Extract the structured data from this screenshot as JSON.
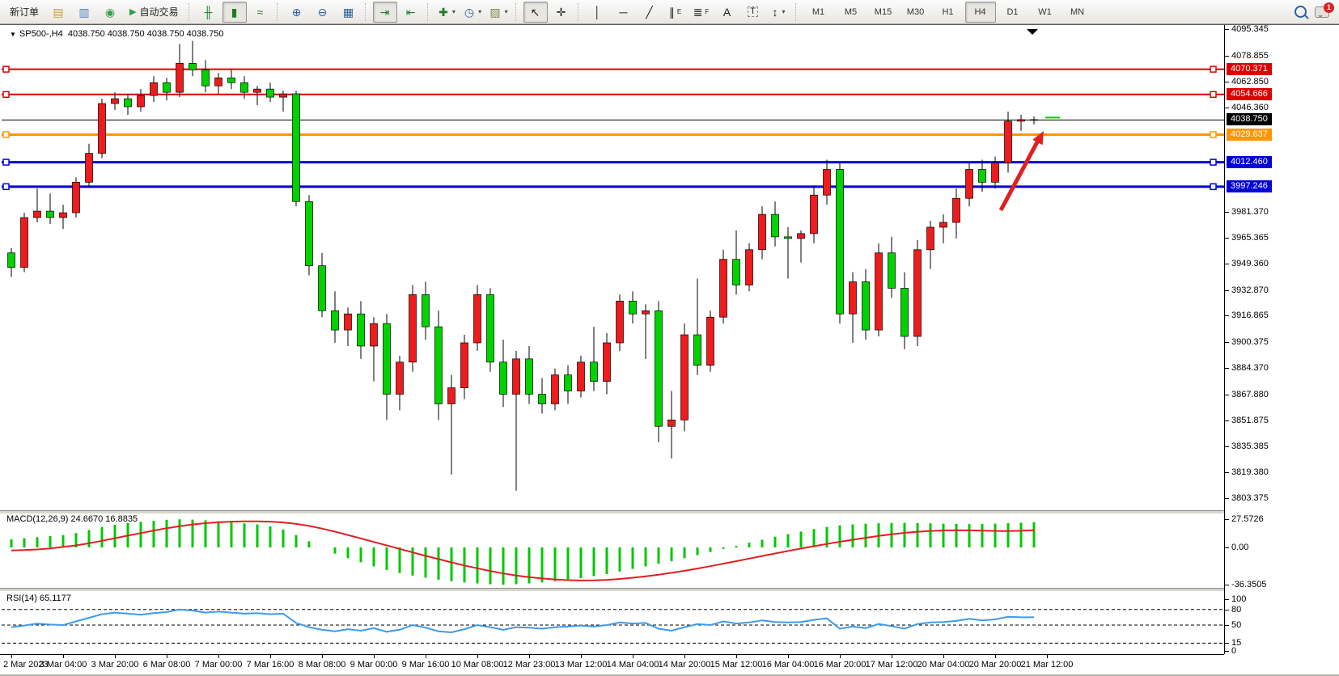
{
  "toolbar": {
    "new_order_label": "新订单",
    "auto_trading_label": "自动交易",
    "items": [
      {
        "t": "icon",
        "name": "history-center-icon",
        "glyph": "▤",
        "color": "#c9a227"
      },
      {
        "t": "icon",
        "name": "community-icon",
        "glyph": "▥",
        "color": "#4a7fc1"
      },
      {
        "t": "icon",
        "name": "signals-icon",
        "glyph": "◉",
        "color": "#35a04a"
      },
      {
        "t": "autotrade"
      },
      {
        "t": "sep"
      },
      {
        "t": "icon",
        "name": "bar-chart-icon",
        "glyph": "╫",
        "color": "#1e7d22"
      },
      {
        "t": "icon",
        "name": "candlestick-chart-icon",
        "glyph": "▮",
        "color": "#1e7d22",
        "pressed": true
      },
      {
        "t": "icon",
        "name": "line-chart-icon",
        "glyph": "≈",
        "color": "#1e7d22"
      },
      {
        "t": "sep"
      },
      {
        "t": "icon",
        "name": "zoom-in-icon",
        "glyph": "⊕",
        "color": "#2c5f9e"
      },
      {
        "t": "icon",
        "name": "zoom-out-icon",
        "glyph": "⊖",
        "color": "#2c5f9e"
      },
      {
        "t": "icon",
        "name": "tile-windows-icon",
        "glyph": "▦",
        "color": "#2c5f9e"
      },
      {
        "t": "sep"
      },
      {
        "t": "icon",
        "name": "auto-scroll-icon",
        "glyph": "⇥",
        "color": "#1e7d22",
        "pressed": true
      },
      {
        "t": "icon",
        "name": "chart-shift-icon",
        "glyph": "⇤",
        "color": "#1e7d22"
      },
      {
        "t": "sep"
      },
      {
        "t": "icon",
        "name": "indicators-icon",
        "glyph": "✚",
        "color": "#1e7d22",
        "caret": true
      },
      {
        "t": "icon",
        "name": "periods-icon",
        "glyph": "◷",
        "color": "#2c5f9e",
        "caret": true
      },
      {
        "t": "icon",
        "name": "templates-icon",
        "glyph": "▨",
        "color": "#7a8a4a",
        "caret": true
      },
      {
        "t": "sep"
      },
      {
        "t": "icon",
        "name": "cursor-icon",
        "glyph": "↖",
        "color": "#222",
        "pressed": true
      },
      {
        "t": "icon",
        "name": "crosshair-icon",
        "glyph": "✛",
        "color": "#222"
      },
      {
        "t": "sep"
      },
      {
        "t": "icon",
        "name": "vertical-line-icon",
        "glyph": "│",
        "color": "#222"
      },
      {
        "t": "icon",
        "name": "horizontal-line-icon",
        "glyph": "─",
        "color": "#222"
      },
      {
        "t": "icon",
        "name": "trendline-icon",
        "glyph": "╱",
        "color": "#222"
      },
      {
        "t": "icon",
        "name": "equidistant-channel-icon",
        "glyph": "∥",
        "sub": "E",
        "color": "#222"
      },
      {
        "t": "icon",
        "name": "fibonacci-icon",
        "glyph": "≣",
        "sub": "F",
        "color": "#222"
      },
      {
        "t": "icon",
        "name": "text-icon",
        "glyph": "A",
        "color": "#222"
      },
      {
        "t": "icon",
        "name": "text-label-icon",
        "glyph": "T",
        "color": "#222"
      },
      {
        "t": "icon",
        "name": "arrows-icon",
        "glyph": "↕",
        "color": "#222",
        "caret": true
      },
      {
        "t": "sep"
      }
    ],
    "timeframes": [
      "M1",
      "M5",
      "M15",
      "M30",
      "H1",
      "H4",
      "D1",
      "W1",
      "MN"
    ],
    "active_timeframe": "H4",
    "notification_badge": "1"
  },
  "chart": {
    "symbol_title": "SP500-,H4",
    "ohlc_line": "4038.750 4038.750 4038.750 4038.750"
  },
  "indicators": {
    "macd_label": "MACD(12,26,9) 24.6670 16.8835",
    "rsi_label": "RSI(14) 65.1177",
    "macd_ticks": [
      "27.5726",
      "0.00",
      "-36.3505"
    ],
    "macd_tick_values": [
      27.5726,
      0,
      -36.3505
    ],
    "rsi_ticks": [
      "100",
      "80",
      "50",
      "15",
      "0"
    ],
    "rsi_tick_values": [
      100,
      80,
      50,
      15,
      0
    ]
  },
  "price_axis": {
    "ticks": [
      "4095.345",
      "4078.855",
      "4062.850",
      "4046.360",
      "3981.370",
      "3965.365",
      "3949.360",
      "3932.870",
      "3916.865",
      "3900.375",
      "3884.370",
      "3867.880",
      "3851.875",
      "3835.385",
      "3819.380",
      "3803.375"
    ]
  },
  "time_axis": [
    "2 Mar 2023",
    "3 Mar 04:00",
    "3 Mar 20:00",
    "6 Mar 08:00",
    "7 Mar 00:00",
    "7 Mar 16:00",
    "8 Mar 08:00",
    "9 Mar 00:00",
    "9 Mar 16:00",
    "10 Mar 08:00",
    "12 Mar 23:00",
    "13 Mar 12:00",
    "14 Mar 04:00",
    "14 Mar 20:00",
    "15 Mar 12:00",
    "16 Mar 04:00",
    "16 Mar 20:00",
    "17 Mar 12:00",
    "20 Mar 04:00",
    "20 Mar 20:00",
    "21 Mar 12:00"
  ],
  "colors": {
    "bull": "#ee1c1c",
    "bear": "#00d200",
    "wick": "#000000",
    "level_red": "#dd0000",
    "level_orange": "#ff9500",
    "level_blue": "#0000d8",
    "price_line": "#000000",
    "macd_bar": "#00c800",
    "macd_signal": "#e02020",
    "rsi_line": "#3d9be9",
    "arrow": "#e02020",
    "badge_black": "#000000"
  },
  "chart_data": {
    "type": "candlestick",
    "symbol": "SP500-",
    "timeframe": "H4",
    "current_price": 4038.75,
    "ylim": [
      3803.375,
      4095.345
    ],
    "grid": false,
    "levels": [
      {
        "price": 4070.371,
        "label": "4070.371",
        "color": "#dd0000",
        "line_width": 2,
        "handles": true
      },
      {
        "price": 4054.666,
        "label": "4054.666",
        "color": "#dd0000",
        "line_width": 2,
        "handles": true
      },
      {
        "price": 4038.75,
        "label": "4038.750",
        "color": "#000000",
        "line_width": 1,
        "handles": false
      },
      {
        "price": 4029.637,
        "label": "4029.637",
        "color": "#ff9500",
        "line_width": 3,
        "handles": true
      },
      {
        "price": 4012.46,
        "label": "4012.460",
        "color": "#0000d8",
        "line_width": 3,
        "handles": true
      },
      {
        "price": 3997.246,
        "label": "3997.246",
        "color": "#0000d8",
        "line_width": 3,
        "handles": true
      }
    ],
    "candles": [
      [
        3956,
        3959,
        3941,
        3947
      ],
      [
        3947,
        3981,
        3944,
        3978
      ],
      [
        3978,
        3996,
        3975,
        3982
      ],
      [
        3982,
        3993,
        3974,
        3978
      ],
      [
        3978,
        3986,
        3971,
        3981
      ],
      [
        3981,
        4003,
        3978,
        4000
      ],
      [
        4000,
        4024,
        3997,
        4018
      ],
      [
        4018,
        4052,
        4015,
        4049
      ],
      [
        4049,
        4056,
        4045,
        4052
      ],
      [
        4052,
        4055,
        4042,
        4047
      ],
      [
        4047,
        4058,
        4044,
        4054
      ],
      [
        4054,
        4066,
        4050,
        4062
      ],
      [
        4062,
        4065,
        4051,
        4056
      ],
      [
        4056,
        4086,
        4053,
        4074
      ],
      [
        4074,
        4088,
        4066,
        4070
      ],
      [
        4070,
        4076,
        4056,
        4060
      ],
      [
        4060,
        4068,
        4055,
        4065
      ],
      [
        4065,
        4070,
        4058,
        4062
      ],
      [
        4062,
        4066,
        4052,
        4056
      ],
      [
        4056,
        4060,
        4048,
        4058
      ],
      [
        4058,
        4062,
        4050,
        4053
      ],
      [
        4053,
        4057,
        4044,
        4055
      ],
      [
        4055,
        4057,
        3985,
        3988
      ],
      [
        3988,
        3992,
        3942,
        3948
      ],
      [
        3948,
        3956,
        3916,
        3920
      ],
      [
        3920,
        3932,
        3900,
        3908
      ],
      [
        3908,
        3922,
        3898,
        3918
      ],
      [
        3918,
        3926,
        3890,
        3898
      ],
      [
        3898,
        3916,
        3876,
        3912
      ],
      [
        3912,
        3918,
        3852,
        3868
      ],
      [
        3868,
        3892,
        3858,
        3888
      ],
      [
        3888,
        3936,
        3882,
        3930
      ],
      [
        3930,
        3938,
        3902,
        3910
      ],
      [
        3910,
        3920,
        3852,
        3862
      ],
      [
        3862,
        3880,
        3818,
        3872
      ],
      [
        3872,
        3905,
        3865,
        3900
      ],
      [
        3900,
        3936,
        3895,
        3930
      ],
      [
        3930,
        3934,
        3882,
        3888
      ],
      [
        3888,
        3902,
        3860,
        3868
      ],
      [
        3868,
        3895,
        3808,
        3890
      ],
      [
        3890,
        3898,
        3862,
        3868
      ],
      [
        3868,
        3878,
        3856,
        3862
      ],
      [
        3862,
        3884,
        3858,
        3880
      ],
      [
        3880,
        3886,
        3862,
        3870
      ],
      [
        3870,
        3892,
        3866,
        3888
      ],
      [
        3888,
        3910,
        3870,
        3876
      ],
      [
        3876,
        3906,
        3868,
        3900
      ],
      [
        3900,
        3930,
        3895,
        3926
      ],
      [
        3926,
        3932,
        3912,
        3918
      ],
      [
        3918,
        3924,
        3890,
        3920
      ],
      [
        3920,
        3926,
        3838,
        3848
      ],
      [
        3848,
        3870,
        3828,
        3852
      ],
      [
        3852,
        3912,
        3845,
        3905
      ],
      [
        3905,
        3940,
        3880,
        3886
      ],
      [
        3886,
        3920,
        3882,
        3916
      ],
      [
        3916,
        3958,
        3912,
        3952
      ],
      [
        3952,
        3970,
        3930,
        3936
      ],
      [
        3936,
        3962,
        3932,
        3958
      ],
      [
        3958,
        3985,
        3952,
        3980
      ],
      [
        3980,
        3988,
        3960,
        3966
      ],
      [
        3966,
        3972,
        3940,
        3965
      ],
      [
        3965,
        3970,
        3950,
        3968
      ],
      [
        3968,
        3998,
        3962,
        3992
      ],
      [
        3992,
        4014,
        3986,
        4008
      ],
      [
        4008,
        4012,
        3912,
        3918
      ],
      [
        3918,
        3944,
        3900,
        3938
      ],
      [
        3938,
        3946,
        3902,
        3908
      ],
      [
        3908,
        3962,
        3904,
        3956
      ],
      [
        3956,
        3966,
        3928,
        3934
      ],
      [
        3934,
        3944,
        3896,
        3904
      ],
      [
        3904,
        3964,
        3898,
        3958
      ],
      [
        3958,
        3976,
        3946,
        3972
      ],
      [
        3972,
        3980,
        3962,
        3975
      ],
      [
        3975,
        3996,
        3965,
        3990
      ],
      [
        3990,
        4012,
        3985,
        4008
      ],
      [
        4008,
        4014,
        3994,
        4000
      ],
      [
        4000,
        4016,
        3996,
        4012
      ],
      [
        4012,
        4044,
        4006,
        4038
      ],
      [
        4038,
        4042,
        4032,
        4039
      ],
      [
        4039,
        4041,
        4036,
        4038.75
      ]
    ],
    "macd": {
      "params": "12,26,9",
      "value": 24.667,
      "signal_value": 16.8835,
      "range": [
        -36.3505,
        27.5726
      ],
      "histogram": [
        8,
        9,
        10,
        11,
        12,
        14,
        17,
        20,
        22,
        24,
        25,
        26,
        27,
        27.5,
        27.2,
        26.5,
        25.5,
        24.5,
        23.5,
        22.5,
        20.5,
        17.5,
        12,
        6,
        0,
        -6,
        -10.5,
        -14.5,
        -18.5,
        -22,
        -25,
        -27.5,
        -29.5,
        -31.5,
        -33,
        -34.2,
        -35.2,
        -36,
        -36.35,
        -36,
        -35.2,
        -34.2,
        -33,
        -31.5,
        -30,
        -28,
        -26,
        -23.5,
        -21,
        -18.5,
        -16,
        -13.5,
        -10.5,
        -7.5,
        -4.5,
        -1.5,
        1.5,
        4.5,
        7.5,
        10.5,
        13,
        15.5,
        18,
        20,
        21.5,
        22.5,
        23.2,
        23.6,
        23.9,
        24,
        23.8,
        23.5,
        23.2,
        23,
        22.8,
        22.9,
        23.2,
        23.7,
        24.2,
        24.667
      ],
      "signal": [
        -3,
        -2.5,
        -2,
        -1,
        0.5,
        2,
        4,
        6.5,
        9,
        11.5,
        14,
        16.5,
        18.8,
        20.8,
        22.4,
        23.7,
        24.6,
        25.2,
        25.5,
        25.5,
        25.2,
        24.4,
        23,
        21,
        18.4,
        15.4,
        12.2,
        8.8,
        5.4,
        2,
        -1.4,
        -4.8,
        -8.2,
        -11.4,
        -14.6,
        -17.6,
        -20.4,
        -23,
        -25.4,
        -27.4,
        -29,
        -30.3,
        -31.3,
        -32,
        -32.3,
        -32.2,
        -31.7,
        -30.8,
        -29.6,
        -28.2,
        -26.6,
        -24.8,
        -22.8,
        -20.6,
        -18.3,
        -15.9,
        -13.4,
        -10.9,
        -8.4,
        -5.9,
        -3.5,
        -1.1,
        1.2,
        3.4,
        5.5,
        7.5,
        9.4,
        11.2,
        12.8,
        14.2,
        15.3,
        16.1,
        16.6,
        16.8,
        16.7,
        16.4,
        16.1,
        16,
        16.3,
        16.884
      ]
    },
    "rsi": {
      "period": 14,
      "value": 65.1177,
      "levels": [
        80,
        50,
        15
      ],
      "values": [
        46,
        49,
        53,
        51,
        50,
        57,
        64,
        71,
        74,
        72,
        70,
        73,
        75,
        80,
        78,
        74,
        76,
        74,
        72,
        73,
        71,
        72,
        54,
        46,
        41,
        38,
        42,
        39,
        44,
        37,
        41,
        50,
        45,
        38,
        36,
        42,
        50,
        46,
        41,
        46,
        45,
        43,
        46,
        47,
        49,
        47,
        50,
        55,
        53,
        54,
        43,
        39,
        46,
        52,
        50,
        57,
        53,
        55,
        59,
        56,
        55,
        56,
        60,
        63,
        43,
        47,
        44,
        52,
        48,
        43,
        52,
        55,
        56,
        58,
        62,
        59,
        61,
        66,
        65,
        65.1
      ]
    },
    "annotations": [
      {
        "type": "arrow",
        "direction": "up-right",
        "color": "#e02020"
      }
    ]
  }
}
